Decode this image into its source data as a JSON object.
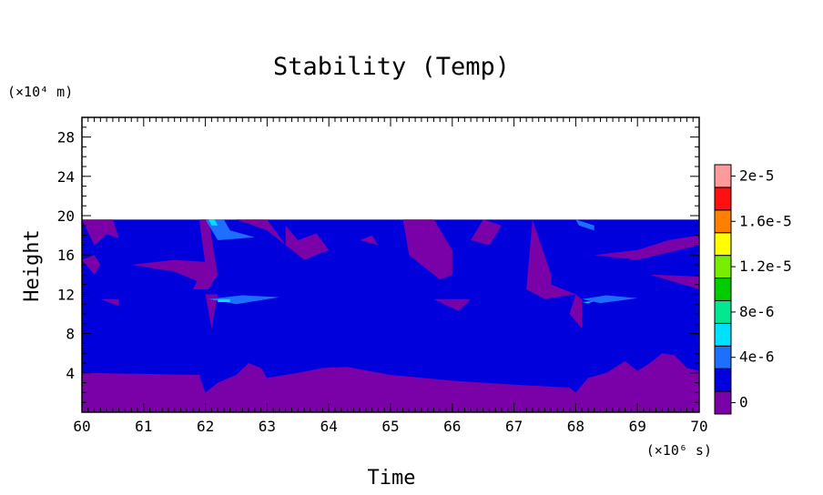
{
  "chart_data": {
    "type": "heatmap",
    "title": "Stability (Temp)",
    "xlabel": "Time",
    "ylabel": "Height",
    "x_unit": "(×10⁶ s)",
    "y_unit": "(×10⁴ m)",
    "xlim": [
      60,
      70
    ],
    "ylim": [
      0,
      30
    ],
    "x_ticks": [
      "60",
      "61",
      "62",
      "63",
      "64",
      "65",
      "66",
      "67",
      "68",
      "69",
      "70"
    ],
    "y_ticks": [
      "4",
      "8",
      "12",
      "16",
      "20",
      "24",
      "28"
    ],
    "data_top": 19.6,
    "colorbar": {
      "labels": [
        "0",
        "4e-6",
        "8e-6",
        "1.2e-5",
        "1.6e-5",
        "2e-5"
      ],
      "colors": [
        "#7a00a8",
        "#0000dd",
        "#1e6fff",
        "#00e0ff",
        "#00e890",
        "#00cc00",
        "#77ee00",
        "#ffff00",
        "#ff8000",
        "#ff1010",
        "#ff9a9a"
      ]
    },
    "regions": [
      {
        "level": 0,
        "points": [
          [
            60,
            0
          ],
          [
            70,
            0
          ],
          [
            70,
            4.2
          ],
          [
            69.8,
            4.5
          ],
          [
            69.6,
            5.8
          ],
          [
            69.4,
            6.0
          ],
          [
            69.2,
            5.0
          ],
          [
            69.0,
            4.2
          ],
          [
            68.8,
            5.2
          ],
          [
            68.5,
            4.0
          ],
          [
            68.2,
            3.5
          ],
          [
            68.0,
            2.0
          ],
          [
            67.9,
            2.5
          ],
          [
            67.0,
            2.8
          ],
          [
            66.0,
            3.2
          ],
          [
            65.0,
            3.8
          ],
          [
            64.3,
            4.6
          ],
          [
            63.9,
            4.5
          ],
          [
            63.5,
            4.0
          ],
          [
            63.0,
            3.5
          ],
          [
            62.9,
            4.5
          ],
          [
            62.7,
            5.0
          ],
          [
            62.5,
            3.8
          ],
          [
            62.2,
            3.0
          ],
          [
            62.0,
            2.0
          ],
          [
            61.9,
            3.8
          ],
          [
            61.0,
            3.9
          ],
          [
            60,
            4.0
          ]
        ]
      },
      {
        "level": 0,
        "points": [
          [
            64.3,
            3.5
          ],
          [
            64.6,
            3.4
          ],
          [
            64.6,
            2.8
          ],
          [
            64.3,
            2.9
          ]
        ]
      },
      {
        "level": 0,
        "points": [
          [
            60,
            19.6
          ],
          [
            60.2,
            17.0
          ],
          [
            60.4,
            18.1
          ],
          [
            60.6,
            17.7
          ],
          [
            60.5,
            19.6
          ]
        ]
      },
      {
        "level": 0,
        "points": [
          [
            60,
            15.5
          ],
          [
            60.2,
            14.0
          ],
          [
            60.3,
            15.0
          ],
          [
            60.2,
            16.0
          ]
        ]
      },
      {
        "level": 0,
        "points": [
          [
            60.3,
            11.5
          ],
          [
            60.6,
            10.8
          ],
          [
            60.6,
            11.5
          ]
        ]
      },
      {
        "level": 0,
        "points": [
          [
            60.8,
            15.0
          ],
          [
            61.5,
            14.3
          ],
          [
            62.0,
            13.0
          ],
          [
            62.0,
            15.3
          ],
          [
            61.5,
            15.5
          ]
        ]
      },
      {
        "level": 0,
        "points": [
          [
            61.9,
            19.6
          ],
          [
            62.0,
            15.0
          ],
          [
            61.8,
            12.5
          ],
          [
            62.05,
            12.5
          ],
          [
            62.2,
            14.0
          ],
          [
            62.05,
            19.6
          ]
        ]
      },
      {
        "level": 0,
        "points": [
          [
            62.0,
            12.0
          ],
          [
            62.1,
            8.5
          ],
          [
            62.2,
            12.0
          ]
        ]
      },
      {
        "level": 0,
        "points": [
          [
            62.5,
            19.6
          ],
          [
            63.0,
            18.5
          ],
          [
            63.3,
            17.0
          ],
          [
            63.0,
            19.6
          ]
        ]
      },
      {
        "level": 0,
        "points": [
          [
            63.3,
            19.0
          ],
          [
            63.5,
            17.5
          ],
          [
            63.8,
            18.2
          ],
          [
            64.0,
            16.5
          ],
          [
            63.6,
            15.5
          ],
          [
            63.3,
            17.0
          ]
        ]
      },
      {
        "level": 0,
        "points": [
          [
            64.5,
            17.5
          ],
          [
            64.8,
            17.0
          ],
          [
            64.7,
            18.0
          ]
        ]
      },
      {
        "level": 0,
        "points": [
          [
            65.2,
            19.6
          ],
          [
            65.3,
            16.0
          ],
          [
            65.8,
            13.5
          ],
          [
            66.0,
            14.0
          ],
          [
            66.0,
            16.5
          ],
          [
            65.7,
            19.6
          ]
        ]
      },
      {
        "level": 0,
        "points": [
          [
            65.7,
            11.5
          ],
          [
            66.1,
            10.3
          ],
          [
            66.3,
            11.5
          ]
        ]
      },
      {
        "level": 0,
        "points": [
          [
            66.3,
            17.5
          ],
          [
            66.5,
            19.6
          ],
          [
            66.8,
            19.0
          ],
          [
            66.6,
            17.0
          ]
        ]
      },
      {
        "level": 0,
        "points": [
          [
            67.3,
            19.6
          ],
          [
            67.6,
            14.0
          ],
          [
            67.6,
            13.0
          ],
          [
            68.0,
            12.0
          ],
          [
            67.5,
            11.5
          ],
          [
            67.2,
            12.5
          ]
        ]
      },
      {
        "level": 0,
        "points": [
          [
            68.0,
            12.0
          ],
          [
            67.9,
            10.0
          ],
          [
            68.1,
            8.5
          ],
          [
            68.1,
            11.5
          ]
        ]
      },
      {
        "level": 0,
        "points": [
          [
            68.3,
            16.0
          ],
          [
            69.0,
            16.5
          ],
          [
            69.5,
            17.5
          ],
          [
            70,
            18.0
          ],
          [
            70,
            17.0
          ],
          [
            69.0,
            15.5
          ]
        ]
      },
      {
        "level": 0,
        "points": [
          [
            69.2,
            14.0
          ],
          [
            70,
            12.5
          ],
          [
            70,
            13.8
          ]
        ]
      },
      {
        "level": 2,
        "points": [
          [
            62.0,
            19.6
          ],
          [
            62.3,
            19.6
          ],
          [
            62.4,
            18.5
          ],
          [
            62.8,
            17.8
          ],
          [
            62.2,
            17.5
          ]
        ]
      },
      {
        "level": 3,
        "points": [
          [
            62.05,
            19.6
          ],
          [
            62.15,
            19.6
          ],
          [
            62.2,
            19.0
          ],
          [
            62.1,
            19.0
          ]
        ]
      },
      {
        "level": 2,
        "points": [
          [
            62.05,
            11.5
          ],
          [
            62.6,
            11.9
          ],
          [
            63.2,
            11.7
          ],
          [
            62.5,
            11.0
          ]
        ]
      },
      {
        "level": 3,
        "points": [
          [
            62.2,
            11.5
          ],
          [
            62.4,
            11.5
          ],
          [
            62.4,
            11.2
          ],
          [
            62.2,
            11.2
          ]
        ]
      },
      {
        "level": 2,
        "points": [
          [
            68.0,
            19.6
          ],
          [
            68.3,
            19.0
          ],
          [
            68.3,
            18.5
          ],
          [
            68.05,
            19.0
          ]
        ]
      },
      {
        "level": 2,
        "points": [
          [
            68.1,
            11.5
          ],
          [
            68.5,
            11.9
          ],
          [
            69.0,
            11.6
          ],
          [
            68.4,
            11.1
          ]
        ]
      },
      {
        "level": 3,
        "points": [
          [
            68.1,
            11.2
          ],
          [
            68.3,
            11.3
          ],
          [
            68.2,
            11.1
          ]
        ]
      }
    ]
  }
}
